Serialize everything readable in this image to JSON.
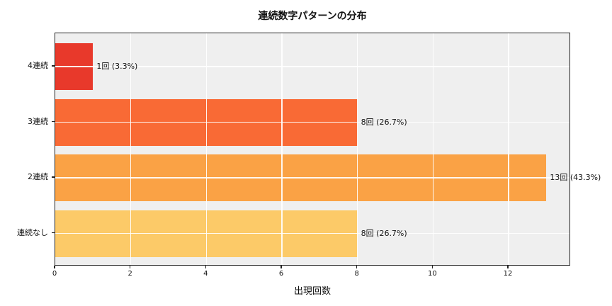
{
  "chart_data": {
    "type": "bar",
    "orientation": "horizontal",
    "title": "連続数字パターンの分布",
    "xlabel": "出現回数",
    "ylabel": "",
    "categories": [
      "4連続",
      "3連続",
      "2連続",
      "連続なし"
    ],
    "values": [
      1,
      8,
      13,
      8
    ],
    "percentages": [
      3.3,
      26.7,
      43.3,
      26.7
    ],
    "value_labels": [
      "1回 (3.3%)",
      "8回 (26.7%)",
      "13回 (43.3%)",
      "8回 (26.7%)"
    ],
    "bar_colors": [
      "#e8392b",
      "#f96a35",
      "#faa245",
      "#fcca68"
    ],
    "x_ticks": [
      0,
      2,
      4,
      6,
      8,
      10,
      12
    ],
    "xlim": [
      0,
      13.65
    ],
    "grid": true,
    "legend": false,
    "plot_background": "#efefef",
    "grid_color": "#ffffff",
    "spine_color": "#232323"
  }
}
